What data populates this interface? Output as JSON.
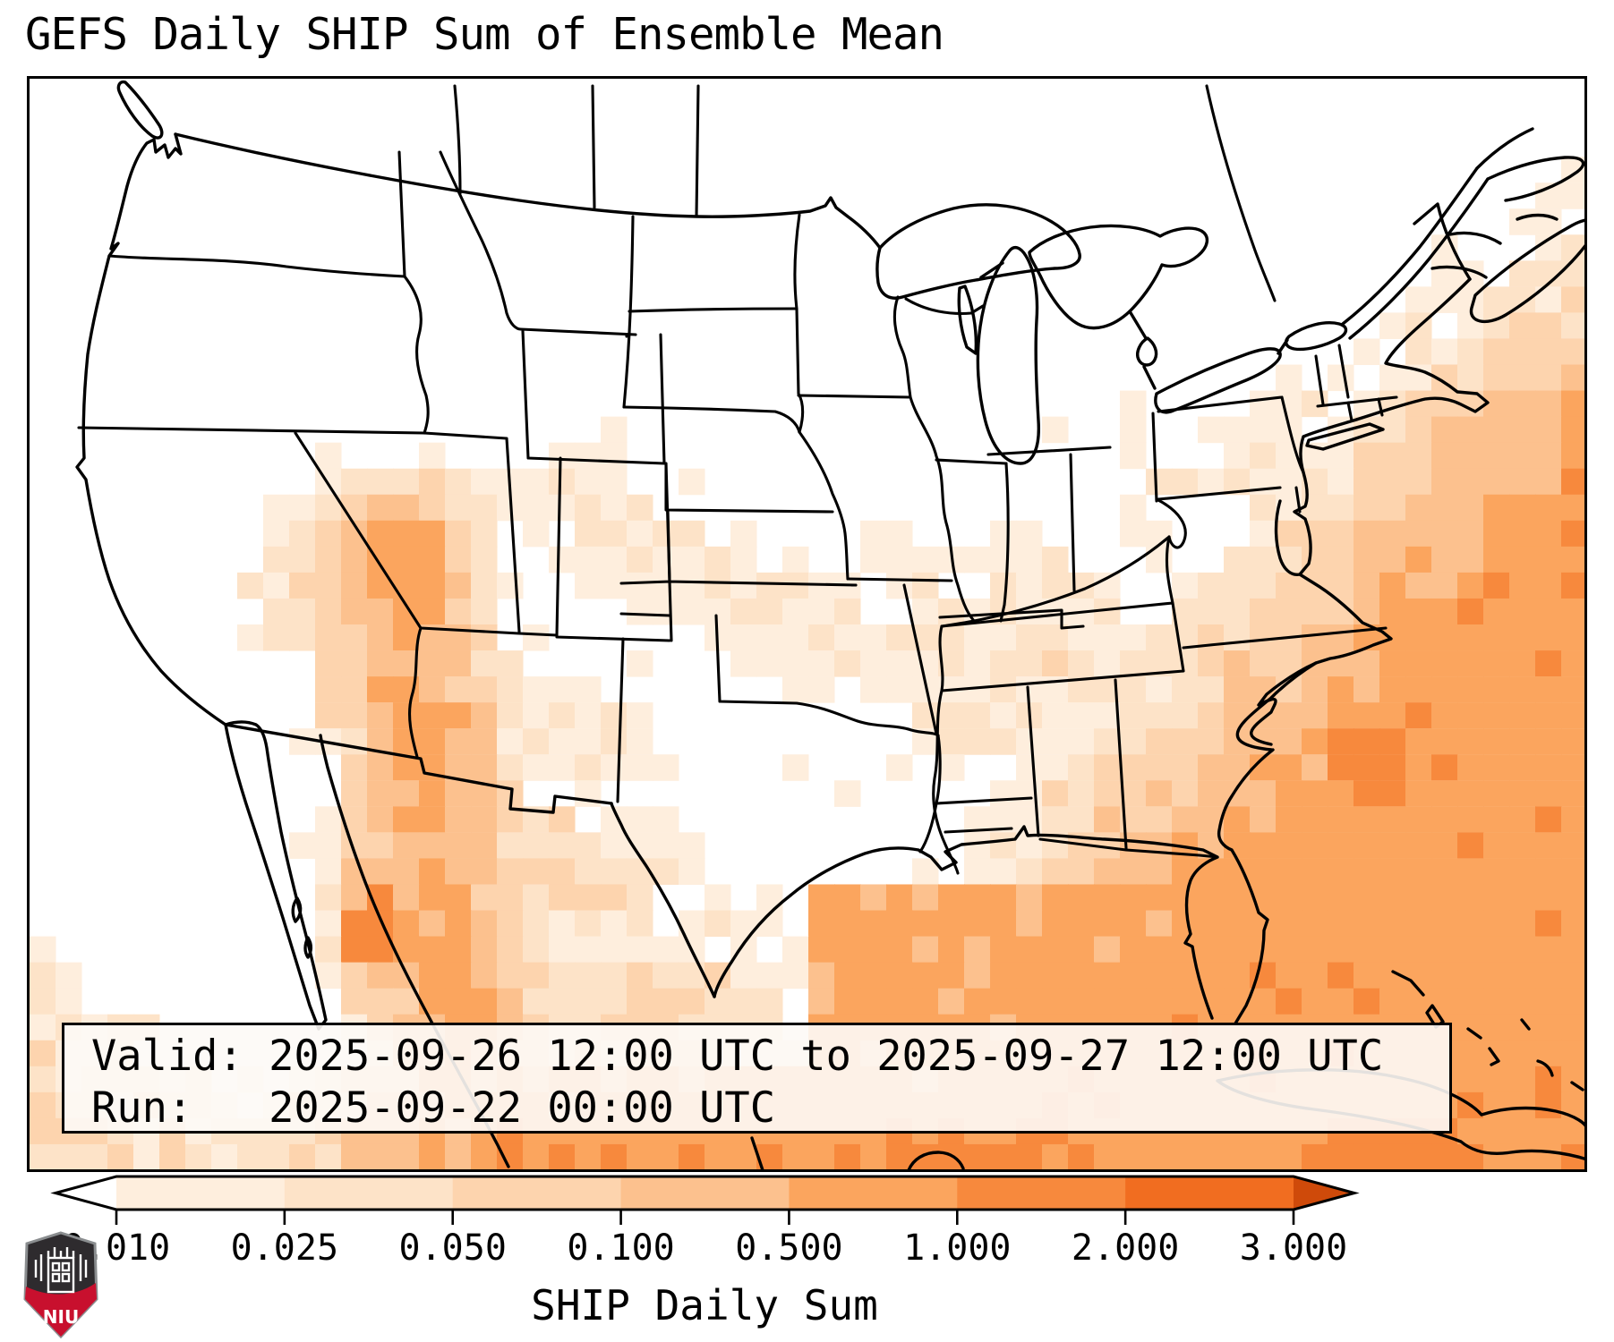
{
  "title": "GEFS Daily SHIP Sum of Ensemble Mean",
  "info_box": {
    "valid_line": "Valid: 2025-09-26 12:00 UTC to 2025-09-27 12:00 UTC",
    "run_line": "Run:   2025-09-22 00:00 UTC"
  },
  "colorbar": {
    "label": "SHIP Daily Sum",
    "tick_labels": [
      "0.010",
      "0.025",
      "0.050",
      "0.100",
      "0.500",
      "1.000",
      "2.000",
      "3.000"
    ],
    "under_color": "#ffffff",
    "over_color": "#cf4a0a",
    "outline_color": "#000000",
    "levels": [
      {
        "range": "0.010-0.025",
        "color": "#feeedd"
      },
      {
        "range": "0.025-0.050",
        "color": "#fde3c8"
      },
      {
        "range": "0.050-0.100",
        "color": "#fdd4ae"
      },
      {
        "range": "0.100-0.500",
        "color": "#fcc18e"
      },
      {
        "range": "0.500-1.000",
        "color": "#fba55e"
      },
      {
        "range": "1.000-2.000",
        "color": "#f7893d"
      },
      {
        "range": "2.000-3.000",
        "color": "#f16d20"
      }
    ]
  },
  "map": {
    "border_color": "#000000",
    "land_color": "#ffffff",
    "faded_detail_note": "coastlines show grey through semi-transparent info box"
  },
  "logo": {
    "text": "NIU",
    "shield_dark": "#2e2b2e",
    "shield_red": "#c8102e",
    "shield_outline": "#8a8d8f"
  },
  "chart_data": {
    "type": "heatmap",
    "title": "GEFS Daily SHIP Sum of Ensemble Mean",
    "colorbar_label": "SHIP Daily Sum",
    "level_boundaries": [
      0.01,
      0.025,
      0.05,
      0.1,
      0.5,
      1.0,
      2.0,
      3.0
    ],
    "extend": "both",
    "valid": "2025-09-26 12:00 UTC to 2025-09-27 12:00 UTC",
    "run": "2025-09-22 00:00 UTC",
    "region_pattern": [
      {
        "region": "Southeast US coast / western Atlantic / Gulf of Mexico",
        "value_band": "0.5-1.0"
      },
      {
        "region": "Offshore Carolinas patches",
        "value_band": "1.0-2.0"
      },
      {
        "region": "Sonora Mexico / Gulf of California corridor",
        "value_band": "1.0-3.0 (local max)"
      },
      {
        "region": "Arizona / New Mexico / west Texas",
        "value_band": "0.05-0.5"
      },
      {
        "region": "Tennessee-Ohio valley, mid-Atlantic, Maine",
        "value_band": "0.01-0.1 speckle"
      },
      {
        "region": "Northwest, northern plains, California",
        "value_band": "< 0.01 (white)"
      }
    ]
  }
}
